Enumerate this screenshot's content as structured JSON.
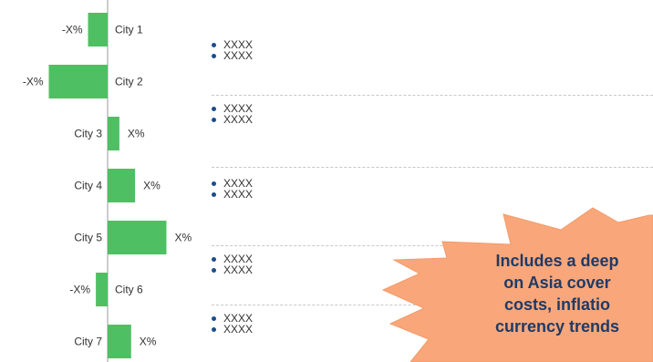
{
  "chart_data": {
    "type": "bar",
    "orientation": "horizontal",
    "categories": [
      "City 1",
      "City 2",
      "City 3",
      "City 4",
      "City 5",
      "City 6",
      "City 7"
    ],
    "values": [
      -2.5,
      -7.5,
      1.5,
      3.5,
      7.5,
      -1.5,
      3.0
    ],
    "data_labels": [
      "-X%",
      "-X%",
      "X%",
      "X%",
      "X%",
      "-X%",
      "X%"
    ],
    "bar_color": "#4fbf63"
  },
  "bullets": [
    [
      "XXXX",
      "XXXX"
    ],
    [
      "XXXX",
      "XXXX"
    ],
    [
      "XXXX",
      "XXXX"
    ],
    [
      "XXXX",
      "XXXX"
    ],
    [
      "XXXX",
      "XXXX"
    ]
  ],
  "callout": {
    "lines": [
      "Includes a deep",
      "on Asia cover",
      "costs, inflatio",
      "currency trends"
    ],
    "fill": "#f9a77a",
    "text_color": "#1f3a66"
  }
}
